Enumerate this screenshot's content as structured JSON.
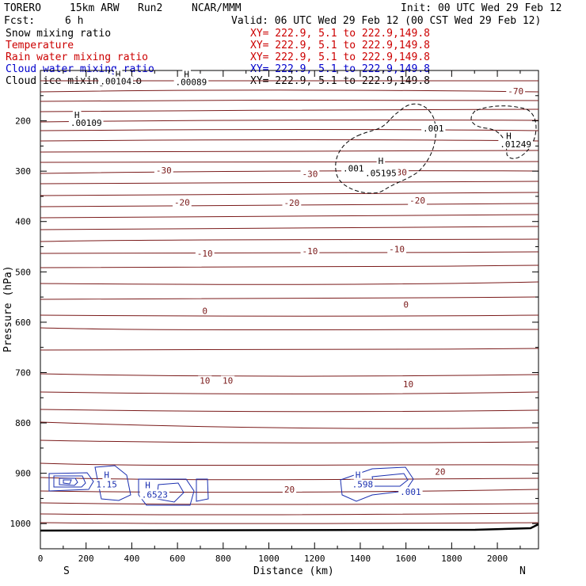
{
  "header": {
    "model": "TORERO",
    "resolution": "15km ARW",
    "run": "Run2",
    "org": "NCAR/MMM",
    "init_label": "Init: 00 UTC Wed 29 Feb 12",
    "fcst_label": "Fcst:",
    "fcst_value": "6 h",
    "valid_label": "Valid: 06 UTC Wed 29 Feb 12 (00 CST Wed 29 Feb 12)"
  },
  "legend": [
    {
      "name": "Snow mixing ratio",
      "color": "#000000",
      "xy": "XY= 222.9,  5.1 to 222.9,149.8"
    },
    {
      "name": "Temperature",
      "color": "#cc0000",
      "xy": "XY= 222.9,  5.1 to 222.9,149.8"
    },
    {
      "name": "Rain water mixing ratio",
      "color": "#cc0000",
      "xy": "XY= 222.9,  5.1 to 222.9,149.8"
    },
    {
      "name": "Cloud water mixing ratio",
      "color": "#0000cc",
      "xy": "XY= 222.9,  5.1 to 222.9,149.8"
    },
    {
      "name": "Cloud ice mixing ratio",
      "color": "#000000",
      "xy": "XY= 222.9,  5.1 to 222.9,149.8"
    }
  ],
  "chart_data": {
    "type": "cross-section contour",
    "xlabel": "Distance (km)",
    "ylabel": "Pressure (hPa)",
    "xlim": [
      0,
      2180
    ],
    "ylim": [
      1050,
      100
    ],
    "x_ticks": [
      0,
      200,
      400,
      600,
      800,
      1000,
      1200,
      1400,
      1600,
      1800,
      2000
    ],
    "y_ticks": [
      200,
      300,
      400,
      500,
      600,
      700,
      800,
      900,
      1000
    ],
    "end_labels": {
      "left": "S",
      "right": "N"
    },
    "temperature_labels": [
      {
        "text": "-70",
        "x": 2080,
        "p": 141
      },
      {
        "text": "-30",
        "x": 540,
        "p": 298
      },
      {
        "text": "-30",
        "x": 1180,
        "p": 305
      },
      {
        "text": "-30",
        "x": 1570,
        "p": 302
      },
      {
        "text": "-20",
        "x": 620,
        "p": 362
      },
      {
        "text": "-20",
        "x": 1100,
        "p": 363
      },
      {
        "text": "-20",
        "x": 1650,
        "p": 358
      },
      {
        "text": "-10",
        "x": 720,
        "p": 463
      },
      {
        "text": "-10",
        "x": 1180,
        "p": 459
      },
      {
        "text": "-10",
        "x": 1560,
        "p": 455
      },
      {
        "text": "0",
        "x": 720,
        "p": 577
      },
      {
        "text": "0",
        "x": 1600,
        "p": 565
      },
      {
        "text": "10",
        "x": 720,
        "p": 716
      },
      {
        "text": "10",
        "x": 820,
        "p": 716
      },
      {
        "text": "10",
        "x": 1610,
        "p": 723
      },
      {
        "text": "20",
        "x": 1090,
        "p": 932
      },
      {
        "text": "20",
        "x": 1750,
        "p": 897
      }
    ],
    "cloud_ice_labels": [
      {
        "text": "H",
        "x": 340,
        "p": 107
      },
      {
        "text": ".00104",
        "x": 330,
        "p": 121
      },
      {
        "text": "H",
        "x": 640,
        "p": 107
      },
      {
        "text": ".00089",
        "x": 660,
        "p": 123
      },
      {
        "text": "H",
        "x": 160,
        "p": 188
      },
      {
        "text": ".00109",
        "x": 200,
        "p": 204
      },
      {
        "text": "H",
        "x": 2050,
        "p": 230
      },
      {
        "text": ".01249",
        "x": 2080,
        "p": 246
      }
    ],
    "snow_labels": [
      {
        "text": ".001",
        "x": 1370,
        "p": 294
      },
      {
        "text": "H",
        "x": 1490,
        "p": 279
      },
      {
        "text": ".05195",
        "x": 1490,
        "p": 304
      },
      {
        "text": ".001",
        "x": 1720,
        "p": 215
      }
    ],
    "cloud_water_labels": [
      {
        "text": "H",
        "x": 290,
        "p": 903
      },
      {
        "text": "1.15",
        "x": 290,
        "p": 922
      },
      {
        "text": "H",
        "x": 470,
        "p": 923
      },
      {
        "text": ".6523",
        "x": 500,
        "p": 942
      },
      {
        "text": "H",
        "x": 1390,
        "p": 903
      },
      {
        "text": ".598",
        "x": 1410,
        "p": 922
      },
      {
        "text": ".001",
        "x": 1620,
        "p": 937
      }
    ]
  }
}
